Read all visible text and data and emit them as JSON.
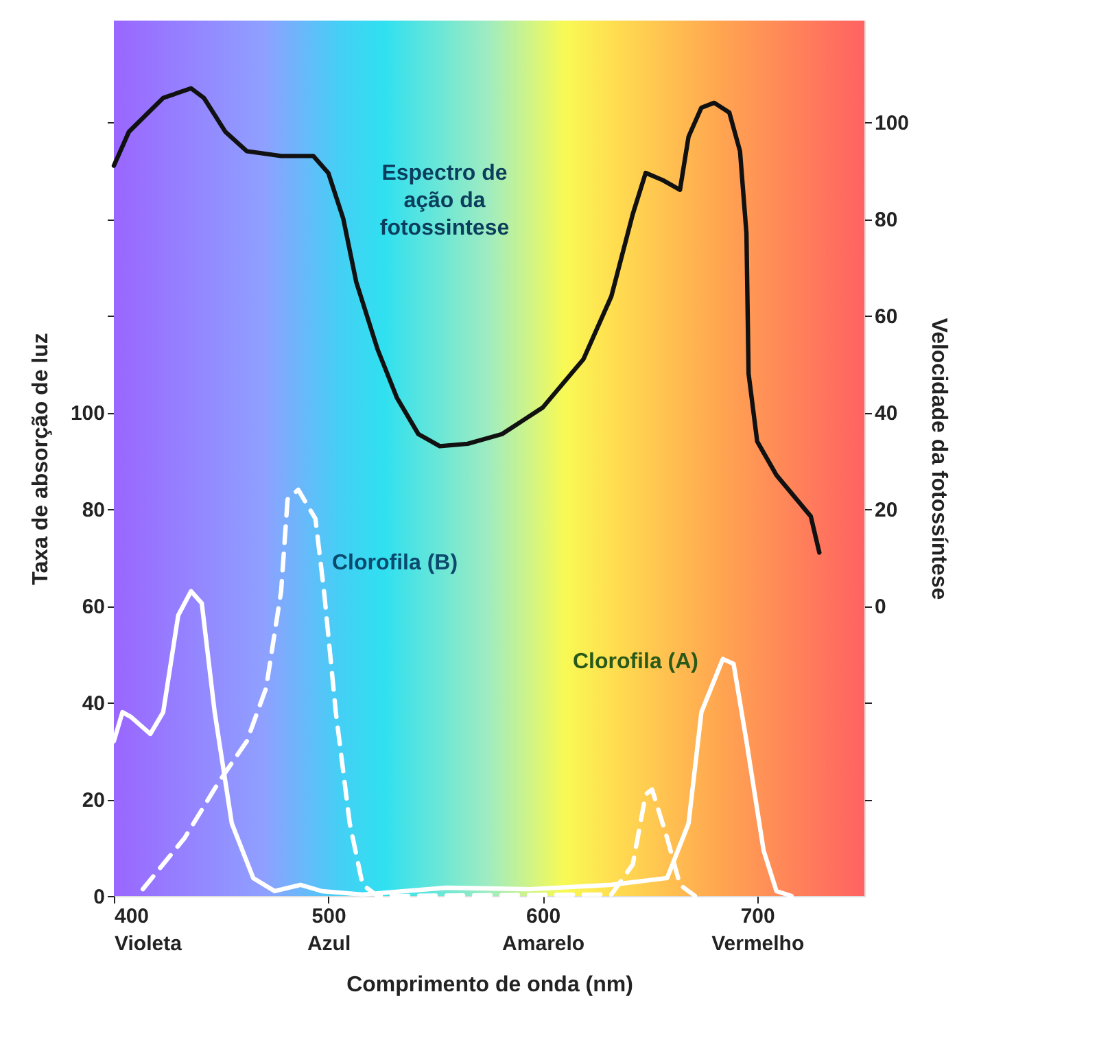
{
  "chart_data": {
    "type": "line",
    "xlabel": "Comprimento de onda (nm)",
    "ylabel": "Taxa de absorção de luz",
    "y2label": "Velocidade da fotossíntese",
    "xlim": [
      400,
      750
    ],
    "xticks": [
      {
        "value": 400,
        "label": "400\nVioleta"
      },
      {
        "value": 500,
        "label": "500\nAzul"
      },
      {
        "value": 600,
        "label": "600\nAmarelo"
      },
      {
        "value": 700,
        "label": "700\nVermelho"
      }
    ],
    "ylim": [
      0,
      181
    ],
    "yticks": [
      0,
      20,
      40,
      60,
      80,
      100,
      {
        "value": 120,
        "label": null
      },
      {
        "value": 140,
        "label": null
      },
      {
        "value": 160,
        "label": null
      }
    ],
    "y2lim": [
      -60,
      121
    ],
    "y2ticks": [
      {
        "value": -40,
        "label": null
      },
      {
        "value": -20,
        "label": null
      },
      0,
      20,
      40,
      60,
      80,
      100
    ],
    "marker": "none",
    "series": [
      {
        "name": "Espectro de\nação da\nfotossintese",
        "color": "#111111",
        "axis": "y2",
        "line_style": "solid",
        "x": [
          400,
          407,
          423,
          436,
          442,
          452,
          462,
          478,
          493,
          500,
          507,
          513,
          523,
          532,
          542,
          552,
          565,
          581,
          600,
          619,
          632,
          642,
          648,
          656,
          664,
          668,
          674,
          680,
          687,
          692,
          695,
          696,
          700,
          709,
          725,
          729
        ],
        "values": [
          91,
          98,
          105,
          107,
          105,
          98,
          94,
          93,
          93,
          89.5,
          80,
          67,
          53,
          43,
          35.5,
          33,
          33.5,
          35.5,
          41,
          51,
          64,
          81,
          89.5,
          88,
          86,
          97,
          103,
          104,
          102,
          94,
          77,
          48,
          34,
          27,
          18.5,
          11
        ]
      },
      {
        "name": "Clorofila (B)",
        "color": "#ffffff",
        "line_style": "dashed",
        "x": [
          413.5,
          433,
          449,
          462,
          471,
          478,
          481,
          486,
          494,
          498,
          503.5,
          510,
          516,
          523,
          529,
          632,
          642,
          648,
          651,
          658,
          664,
          671
        ],
        "values": [
          1.4,
          12,
          23.6,
          32,
          43,
          63,
          82,
          84,
          78,
          63,
          38,
          15,
          2.3,
          0,
          0,
          0.3,
          6.5,
          21,
          22,
          12,
          2.3,
          0
        ]
      },
      {
        "name": "Clorofila (A)",
        "color": "#ffffff",
        "line_style": "solid",
        "x": [
          400,
          404,
          408,
          417,
          423,
          430,
          436,
          441,
          447,
          455,
          465,
          475,
          487,
          497,
          516,
          555,
          594,
          632,
          658,
          668,
          674,
          684,
          689,
          695,
          703,
          709,
          716
        ],
        "values": [
          32,
          38,
          37,
          33.5,
          38,
          58,
          63,
          60.5,
          38,
          15,
          3.7,
          1,
          2.3,
          1,
          0.3,
          1.7,
          1.4,
          2.3,
          3.7,
          15,
          38,
          49,
          48,
          32,
          9.4,
          1,
          0
        ]
      }
    ]
  }
}
